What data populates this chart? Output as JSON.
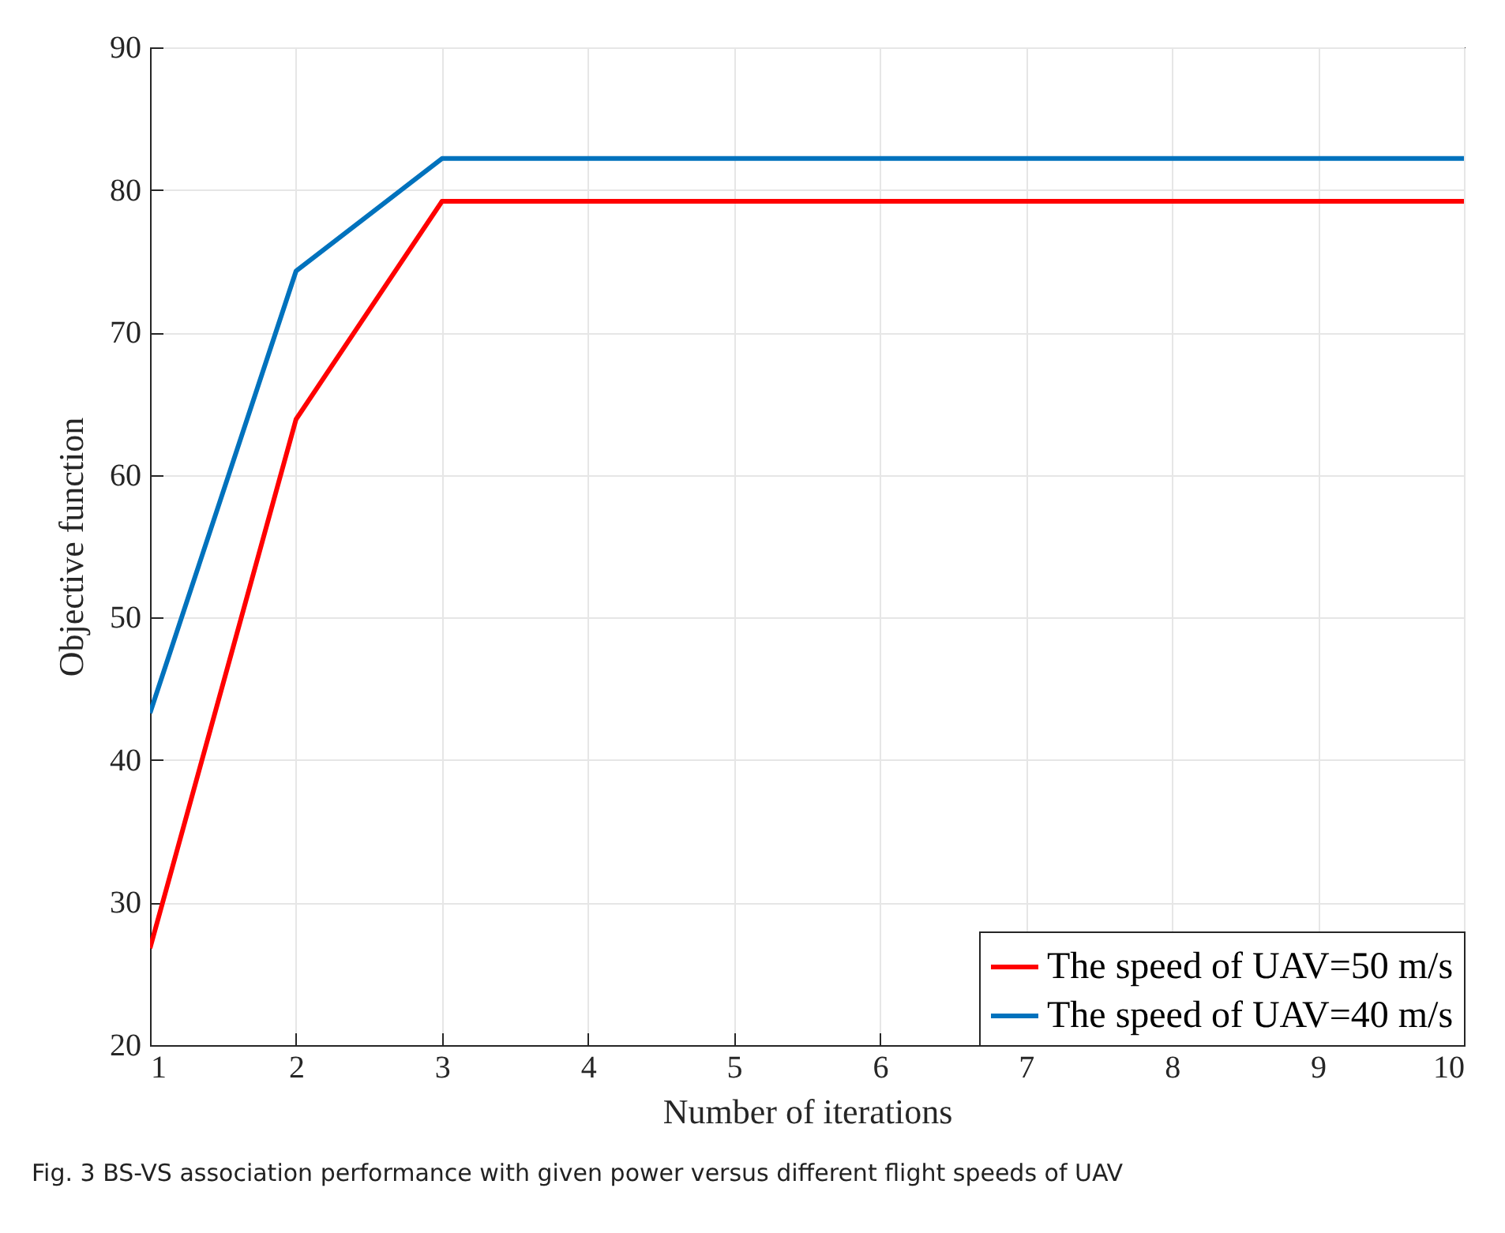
{
  "chart_data": {
    "type": "line",
    "xlabel": "Number of iterations",
    "ylabel": "Objective function",
    "x": [
      1,
      2,
      3,
      4,
      5,
      6,
      7,
      8,
      9,
      10
    ],
    "series": [
      {
        "name": "The speed of UAV=50 m/s",
        "color": "#ff0000",
        "values": [
          26.8,
          63.9,
          79.2,
          79.2,
          79.2,
          79.2,
          79.2,
          79.2,
          79.2,
          79.2
        ]
      },
      {
        "name": "The speed of UAV=40 m/s",
        "color": "#0072bd",
        "values": [
          43.3,
          74.3,
          82.2,
          82.2,
          82.2,
          82.2,
          82.2,
          82.2,
          82.2,
          82.2
        ]
      }
    ],
    "xlim": [
      1,
      10
    ],
    "xticks": [
      1,
      2,
      3,
      4,
      5,
      6,
      7,
      8,
      9,
      10
    ],
    "ylim": [
      20,
      90
    ],
    "yticks": [
      20,
      30,
      40,
      50,
      60,
      70,
      80,
      90
    ],
    "grid": true,
    "legend": "bottom right",
    "marker": "none",
    "line_style": "solid",
    "annotations": [
      "Fig. 3 BS-VS association performance with given power versus different flight speeds of UAV"
    ]
  }
}
